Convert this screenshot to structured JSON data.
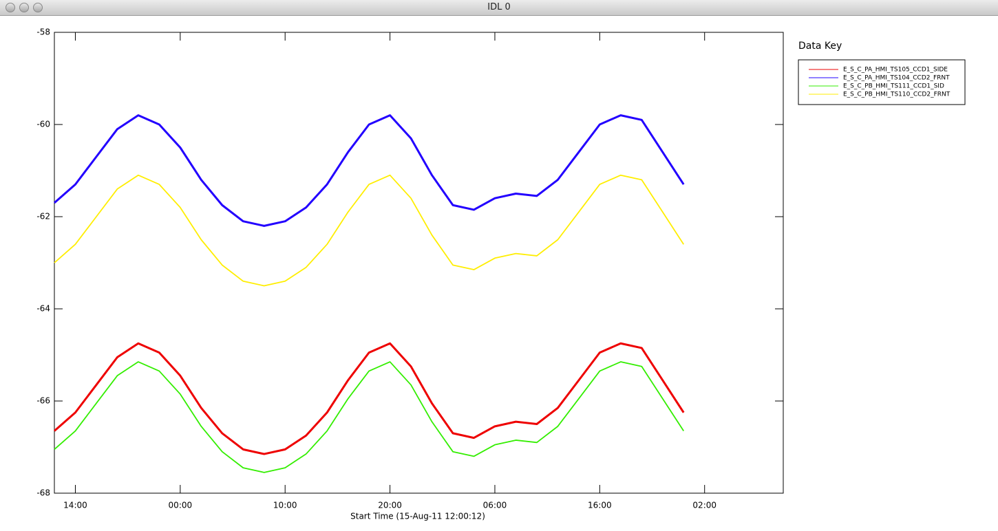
{
  "window": {
    "title": "IDL 0"
  },
  "chart_data": {
    "type": "line",
    "x_label": "Start Time (15-Aug-11 12:00:12)",
    "legend_title": "Data Key",
    "x": [
      0,
      2,
      4,
      6,
      8,
      10,
      12,
      14,
      16,
      18,
      20,
      22,
      24,
      26,
      28,
      30,
      32,
      34,
      36,
      38,
      40,
      42,
      44,
      46,
      48,
      50,
      52,
      54,
      56,
      58,
      60
    ],
    "xlim": [
      0,
      69.5
    ],
    "xticks": [
      {
        "value": 2,
        "label": "14:00"
      },
      {
        "value": 12,
        "label": "00:00"
      },
      {
        "value": 22,
        "label": "10:00"
      },
      {
        "value": 32,
        "label": "20:00"
      },
      {
        "value": 42,
        "label": "06:00"
      },
      {
        "value": 52,
        "label": "16:00"
      },
      {
        "value": 62,
        "label": "02:00"
      }
    ],
    "ylim": [
      -68,
      -58
    ],
    "yticks": [
      -68,
      -66,
      -64,
      -62,
      -60,
      -58
    ],
    "series": [
      {
        "name": "E_S_C_PA_HMI_TS105_CCD1_SIDE",
        "color": "#ee0000",
        "values": [
          -66.65,
          -66.25,
          -65.65,
          -65.05,
          -64.75,
          -64.95,
          -65.45,
          -66.15,
          -66.7,
          -67.05,
          -67.15,
          -67.05,
          -66.75,
          -66.25,
          -65.55,
          -64.95,
          -64.75,
          -65.25,
          -66.05,
          -66.7,
          -66.8,
          -66.55,
          -66.45,
          -66.5,
          -66.15,
          -65.55,
          -64.95,
          -64.75,
          -64.85,
          -65.55,
          -66.25
        ]
      },
      {
        "name": "E_S_C_PA_HMI_TS104_CCD2_FRNT",
        "color": "#2200ff",
        "values": [
          -61.7,
          -61.3,
          -60.7,
          -60.1,
          -59.8,
          -60.0,
          -60.5,
          -61.2,
          -61.75,
          -62.1,
          -62.2,
          -62.1,
          -61.8,
          -61.3,
          -60.6,
          -60.0,
          -59.8,
          -60.3,
          -61.1,
          -61.75,
          -61.85,
          -61.6,
          -61.5,
          -61.55,
          -61.2,
          -60.6,
          -60.0,
          -59.8,
          -59.9,
          -60.6,
          -61.3
        ]
      },
      {
        "name": "E_S_C_PB_HMI_TS111_CCD1_SID",
        "color": "#33ee00",
        "values": [
          -67.05,
          -66.65,
          -66.05,
          -65.45,
          -65.15,
          -65.35,
          -65.85,
          -66.55,
          -67.1,
          -67.45,
          -67.55,
          -67.45,
          -67.15,
          -66.65,
          -65.95,
          -65.35,
          -65.15,
          -65.65,
          -66.45,
          -67.1,
          -67.2,
          -66.95,
          -66.85,
          -66.9,
          -66.55,
          -65.95,
          -65.35,
          -65.15,
          -65.25,
          -65.95,
          -66.65
        ]
      },
      {
        "name": "E_S_C_PB_HMI_TS110_CCD2_FRNT",
        "color": "#ffee00",
        "values": [
          -63.0,
          -62.6,
          -62.0,
          -61.4,
          -61.1,
          -61.3,
          -61.8,
          -62.5,
          -63.05,
          -63.4,
          -63.5,
          -63.4,
          -63.1,
          -62.6,
          -61.9,
          -61.3,
          -61.1,
          -61.6,
          -62.4,
          -63.05,
          -63.15,
          -62.9,
          -62.8,
          -62.85,
          -62.5,
          -61.9,
          -61.3,
          -61.1,
          -61.2,
          -61.9,
          -62.6
        ]
      }
    ]
  }
}
